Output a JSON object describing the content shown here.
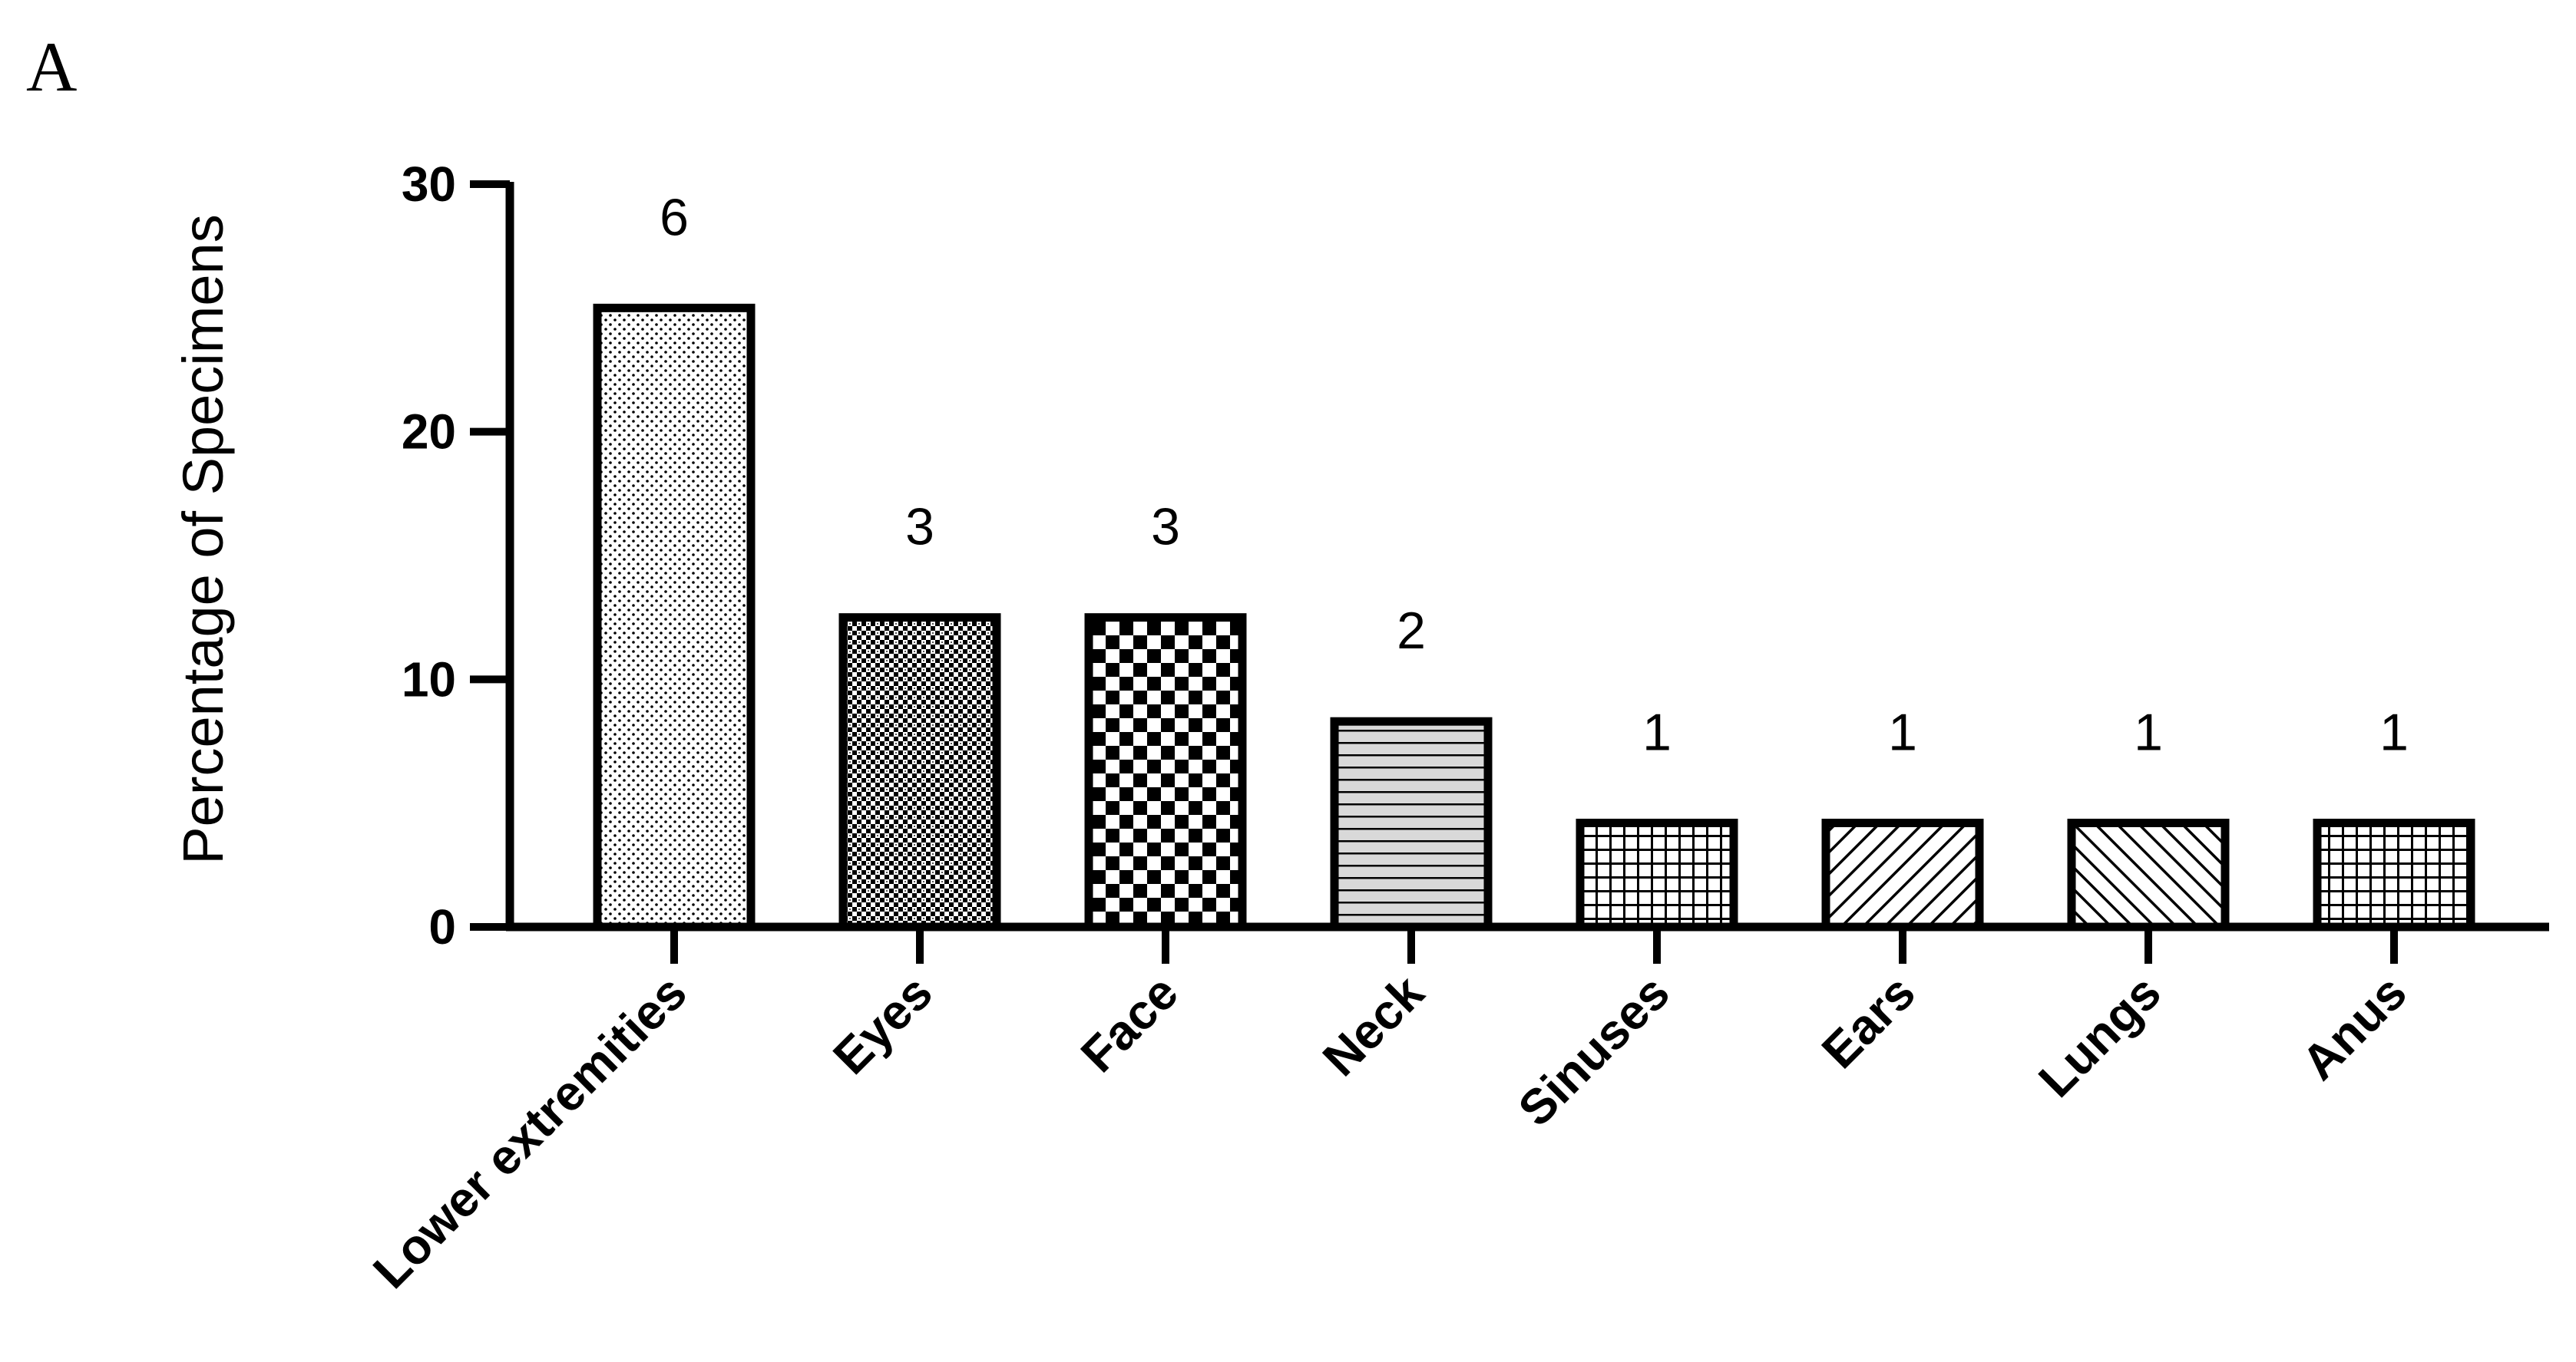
{
  "panel_label": "A",
  "chart_data": {
    "type": "bar",
    "title": "",
    "xlabel": "",
    "ylabel": "Percentage of Specimens",
    "ylim": [
      0,
      30
    ],
    "yticks": [
      0,
      10,
      20,
      30
    ],
    "grid": false,
    "legend": "none",
    "categories": [
      "Lower extremities",
      "Eyes",
      "Face",
      "Neck",
      "Sinuses",
      "Ears",
      "Lungs",
      "Anus"
    ],
    "values": [
      25,
      12.5,
      12.5,
      8.3,
      4.2,
      4.2,
      4.2,
      4.2
    ],
    "bar_counts": [
      "6",
      "3",
      "3",
      "2",
      "1",
      "1",
      "1",
      "1"
    ],
    "bar_fill_patterns": [
      "fine-dots",
      "dense-crosshatch",
      "checkerboard",
      "horizontal-lines",
      "grid",
      "diagonal-lines",
      "back-diagonal-lines",
      "grid"
    ],
    "colors": {
      "bar_outline": "#000000",
      "axis": "#000000",
      "background": "#ffffff",
      "neck_fill": "#d9d9d9"
    }
  }
}
